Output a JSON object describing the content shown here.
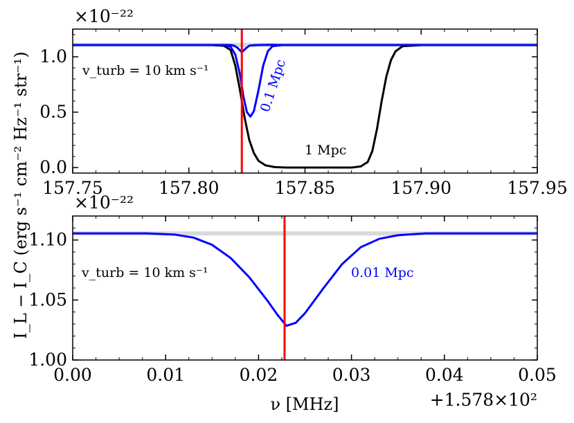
{
  "figure": {
    "ylabel": "I_L − I_C (erg s⁻¹ cm⁻² Hz⁻¹ str⁻¹)",
    "xlabel": "ν [MHz]"
  },
  "chart_data": [
    {
      "type": "line",
      "title": "",
      "xlabel": "",
      "ylabel": "",
      "scale_label": "×10⁻²²",
      "xlim": [
        157.75,
        157.95
      ],
      "ylim": [
        -0.05,
        1.25
      ],
      "xticks": [
        157.75,
        157.8,
        157.85,
        157.9,
        157.95
      ],
      "xtick_labels": [
        "157.75",
        "157.80",
        "157.85",
        "157.90",
        "157.95"
      ],
      "yticks": [
        0.0,
        0.5,
        1.0
      ],
      "ytick_labels": [
        "0.0",
        "0.5",
        "1.0"
      ],
      "continuum": 1.106,
      "marker_x": 157.8228,
      "annotations": [
        {
          "text": "v_turb = 10 km s⁻¹",
          "color": "#000000"
        },
        {
          "text": "0.1 Mpc",
          "color": "#0000ff"
        },
        {
          "text": "1 Mpc",
          "color": "#000000"
        }
      ],
      "series": [
        {
          "name": "continuum",
          "color": "#d9d9d9",
          "x": [
            157.75,
            157.95
          ],
          "y": [
            1.106,
            1.106
          ]
        },
        {
          "name": "1 Mpc",
          "color": "#000000",
          "x": [
            157.75,
            157.81,
            157.815,
            157.818,
            157.82,
            157.822,
            157.824,
            157.826,
            157.828,
            157.83,
            157.833,
            157.837,
            157.842,
            157.85,
            157.86,
            157.87,
            157.874,
            157.877,
            157.879,
            157.881,
            157.883,
            157.885,
            157.887,
            157.889,
            157.892,
            157.9,
            157.95
          ],
          "y": [
            1.106,
            1.106,
            1.1,
            1.06,
            0.92,
            0.7,
            0.45,
            0.25,
            0.13,
            0.06,
            0.02,
            0.004,
            0.0,
            0.0,
            0.0,
            0.0,
            0.01,
            0.05,
            0.15,
            0.35,
            0.6,
            0.82,
            0.97,
            1.05,
            1.095,
            1.106,
            1.106
          ]
        },
        {
          "name": "0.1 Mpc",
          "color": "#0000ff",
          "x": [
            157.75,
            157.815,
            157.818,
            157.82,
            157.822,
            157.8235,
            157.825,
            157.8265,
            157.828,
            157.83,
            157.832,
            157.834,
            157.836,
            157.84,
            157.95
          ],
          "y": [
            1.106,
            1.106,
            1.09,
            1.02,
            0.84,
            0.64,
            0.5,
            0.46,
            0.51,
            0.7,
            0.92,
            1.05,
            1.095,
            1.106,
            1.106
          ]
        },
        {
          "name": "0.01 Mpc",
          "color": "#0000ff",
          "x": [
            157.75,
            157.818,
            157.8195,
            157.821,
            157.8228,
            157.8245,
            157.826,
            157.8275,
            157.83,
            157.835,
            157.84,
            157.95
          ],
          "y": [
            1.106,
            1.106,
            1.1,
            1.08,
            1.04,
            1.075,
            1.1,
            1.104,
            1.106,
            1.108,
            1.106,
            1.106
          ]
        }
      ]
    },
    {
      "type": "line",
      "title": "",
      "xlabel": "ν [MHz]",
      "ylabel": "",
      "scale_label": "×10⁻²²",
      "offset_label": "+1.578×10²",
      "xlim": [
        0.0,
        0.05
      ],
      "ylim": [
        1.0,
        1.12
      ],
      "xticks": [
        0.0,
        0.01,
        0.02,
        0.03,
        0.04,
        0.05
      ],
      "xtick_labels": [
        "0.00",
        "0.01",
        "0.02",
        "0.03",
        "0.04",
        "0.05"
      ],
      "yticks": [
        1.0,
        1.05,
        1.1
      ],
      "ytick_labels": [
        "1.00",
        "1.05",
        "1.10"
      ],
      "continuum": 1.1055,
      "marker_x": 0.0228,
      "annotations": [
        {
          "text": "v_turb = 10 km s⁻¹",
          "color": "#000000"
        },
        {
          "text": "0.01 Mpc",
          "color": "#0000ff"
        }
      ],
      "series": [
        {
          "name": "continuum",
          "color": "#d9d9d9",
          "x": [
            0.0,
            0.05
          ],
          "y": [
            1.1055,
            1.1055
          ]
        },
        {
          "name": "0.01 Mpc",
          "color": "#0000ff",
          "x": [
            0.0,
            0.008,
            0.011,
            0.013,
            0.015,
            0.017,
            0.019,
            0.021,
            0.022,
            0.023,
            0.024,
            0.025,
            0.027,
            0.029,
            0.031,
            0.033,
            0.035,
            0.038,
            0.042,
            0.05
          ],
          "y": [
            1.1055,
            1.1055,
            1.1045,
            1.102,
            1.096,
            1.085,
            1.069,
            1.049,
            1.038,
            1.0285,
            1.031,
            1.039,
            1.06,
            1.08,
            1.094,
            1.101,
            1.104,
            1.1055,
            1.1055,
            1.1055
          ]
        }
      ]
    }
  ]
}
